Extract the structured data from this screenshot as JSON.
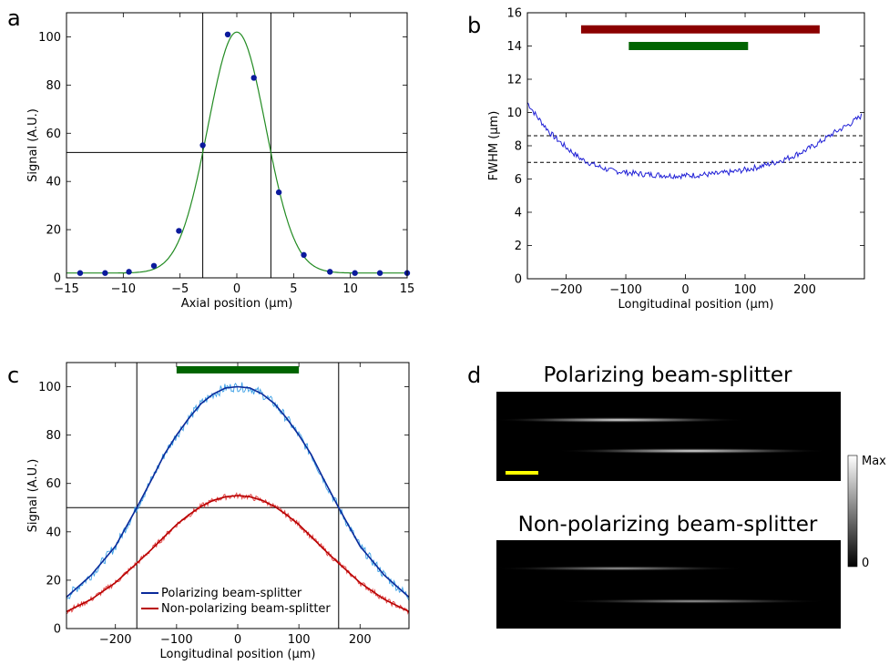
{
  "panel_labels": [
    "a",
    "b",
    "c",
    "d"
  ],
  "chart_data": [
    {
      "panel": "a",
      "type": "scatter",
      "xlabel": "Axial position (µm)",
      "ylabel": "Signal (A.U.)",
      "xlim": [
        -15,
        15
      ],
      "ylim": [
        0,
        110
      ],
      "xticks": [
        "−15",
        "−10",
        "−5",
        "0",
        "5",
        "10",
        "15"
      ],
      "yticks": [
        "0",
        "20",
        "40",
        "60",
        "80",
        "100"
      ],
      "points": {
        "x": [
          -13.8,
          -11.6,
          -9.5,
          -7.3,
          -5.1,
          -3.0,
          -0.8,
          1.5,
          3.7,
          5.9,
          8.2,
          10.4,
          12.6,
          15.0
        ],
        "y": [
          2,
          2,
          2.5,
          5,
          19.5,
          55,
          101,
          83,
          35.5,
          9.5,
          2.5,
          2,
          2,
          2
        ]
      },
      "fit": {
        "type": "gaussian",
        "amplitude": 100,
        "center": 0,
        "sigma": 2.55,
        "offset": 2
      },
      "vlines": [
        -3,
        3
      ],
      "hlines": [
        52
      ],
      "colors": {
        "points": "#0b1a9c",
        "fit": "#228b22"
      }
    },
    {
      "panel": "b",
      "type": "line",
      "xlabel": "Longitudinal position (µm)",
      "ylabel": "FWHM (µm)",
      "xlim": [
        -265,
        300
      ],
      "ylim": [
        0,
        16
      ],
      "xticks": [
        "−200",
        "−100",
        "0",
        "100",
        "200"
      ],
      "yticks": [
        "0",
        "2",
        "4",
        "6",
        "8",
        "10",
        "12",
        "14",
        "16"
      ],
      "series": [
        {
          "x": [
            -265,
            -250,
            -225,
            -200,
            -175,
            -150,
            -125,
            -100,
            -75,
            -50,
            -25,
            0,
            25,
            50,
            75,
            100,
            125,
            150,
            175,
            200,
            225,
            250,
            275,
            295
          ],
          "y": [
            10.6,
            9.8,
            8.7,
            7.9,
            7.2,
            6.8,
            6.5,
            6.4,
            6.3,
            6.25,
            6.2,
            6.2,
            6.25,
            6.3,
            6.4,
            6.55,
            6.75,
            7.0,
            7.3,
            7.7,
            8.2,
            8.8,
            9.3,
            9.8
          ],
          "color": "#1f1fd6"
        }
      ],
      "hlines_dashed": [
        8.6,
        7.0
      ],
      "bars": [
        {
          "x0": -175,
          "x1": 225,
          "y": 15,
          "color": "#8b0000"
        },
        {
          "x0": -95,
          "x1": 105,
          "y": 14,
          "color": "#006400"
        }
      ]
    },
    {
      "panel": "c",
      "type": "line",
      "xlabel": "Longitudinal position (µm)",
      "ylabel": "Signal (A.U.)",
      "xlim": [
        -280,
        280
      ],
      "ylim": [
        0,
        110
      ],
      "xticks": [
        "−200",
        "−100",
        "0",
        "100",
        "200"
      ],
      "yticks": [
        "0",
        "20",
        "40",
        "60",
        "80",
        "100"
      ],
      "series": [
        {
          "name": "Polarizing beam-splitter",
          "x": [
            -280,
            -240,
            -200,
            -165,
            -140,
            -120,
            -100,
            -80,
            -60,
            -40,
            -20,
            0,
            20,
            40,
            60,
            80,
            100,
            120,
            140,
            165,
            200,
            240,
            280
          ],
          "y": [
            13,
            22,
            34,
            50,
            62,
            72,
            80,
            87,
            93,
            97,
            99.5,
            100,
            99.5,
            97,
            93,
            87,
            80,
            72,
            62,
            50,
            34,
            22,
            13
          ],
          "color": "#0a2a9a",
          "noisy_color": "#3ca0e6"
        },
        {
          "name": "Non-polarizing beam-splitter",
          "x": [
            -280,
            -240,
            -200,
            -165,
            -140,
            -120,
            -100,
            -80,
            -60,
            -40,
            -20,
            0,
            20,
            40,
            60,
            80,
            100,
            120,
            140,
            165,
            200,
            240,
            280
          ],
          "y": [
            7,
            12,
            19,
            27,
            33,
            38,
            43,
            47,
            50.5,
            53,
            54.5,
            55,
            54.5,
            53,
            50.5,
            47,
            43,
            38,
            33,
            27,
            19,
            12,
            7
          ],
          "color": "#b80000",
          "noisy_color": "#e04040"
        }
      ],
      "vlines": [
        -165,
        165
      ],
      "hlines": [
        50
      ],
      "bars": [
        {
          "x0": -100,
          "x1": 100,
          "y": 107,
          "color": "#006400"
        }
      ],
      "legend": {
        "position": "bottom-center"
      }
    }
  ],
  "panel_d": {
    "images": [
      {
        "title": "Polarizing beam-splitter"
      },
      {
        "title": "Non-polarizing beam-splitter"
      }
    ],
    "colorbar": {
      "max_label": "Max",
      "min_label": "0"
    },
    "scale_bar_color": "#ffff00"
  }
}
